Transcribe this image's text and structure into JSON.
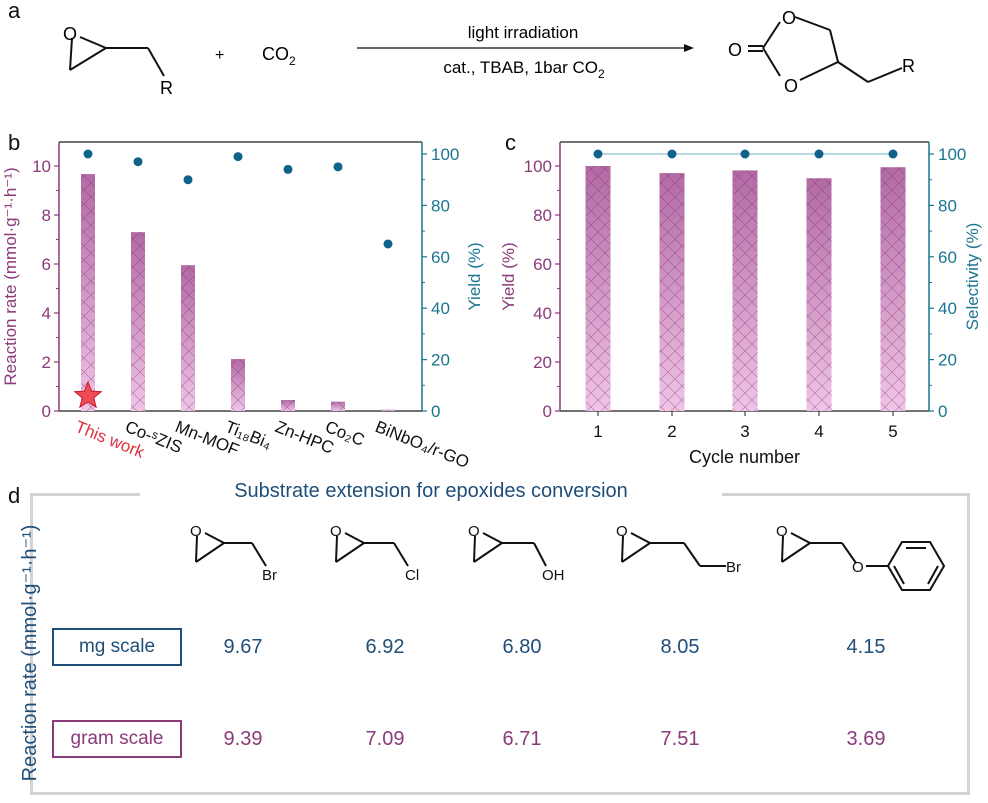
{
  "panel_a": {
    "letter": "a",
    "reactant_substituent": "R",
    "plus": "+",
    "co2": "CO",
    "co2_sub": "2",
    "condition_top": "light irradiation",
    "condition_bottom": "cat., TBAB, 1bar CO",
    "condition_bottom_sub": "2",
    "product_substituent": "R",
    "atom_O": "O"
  },
  "panel_d": {
    "letter": "d",
    "title": "Substrate extension for epoxides conversion",
    "ylabel": "Reaction rate (mmol·g⁻¹·h⁻¹)",
    "substrates": [
      {
        "group": "Br",
        "label": "epibromohydrin"
      },
      {
        "group": "Cl",
        "label": "epichlorohydrin"
      },
      {
        "group": "OH",
        "label": "glycidol"
      },
      {
        "group": "Br",
        "label": "4-bromo-1,2-epoxybutane"
      },
      {
        "group": "O",
        "label": "glycidyl phenyl ether"
      }
    ],
    "rows": [
      {
        "label": "mg scale",
        "color": "#1f4e79",
        "values": [
          "9.67",
          "6.92",
          "6.80",
          "8.05",
          "4.15"
        ]
      },
      {
        "label": "gram scale",
        "color": "#8b3a7a",
        "values": [
          "9.39",
          "7.09",
          "6.71",
          "7.51",
          "3.69"
        ]
      }
    ]
  },
  "colors": {
    "bar_top": "#b26aa4",
    "bar_bottom": "#f0c4e6",
    "left_axis": "#8b3a7a",
    "right_axis": "#1a7590",
    "dots": "#0f6389",
    "star": "#f04a55",
    "this_work": "#e0313f",
    "frame_d": "#d3d3d3"
  },
  "chart_data": [
    {
      "panel": "b",
      "type": "bar",
      "categories": [
        "This work",
        "Co-ˢZIS",
        "Mn-MOF",
        "Ti₁₈Bi₄",
        "Zn-HPC",
        "Co₂C",
        "BiNbO₄/r-GO"
      ],
      "series": [
        {
          "name": "Reaction rate",
          "axis": "left",
          "type": "bar",
          "values": [
            9.67,
            7.3,
            5.95,
            2.12,
            0.45,
            0.38,
            0.05
          ]
        },
        {
          "name": "Yield",
          "axis": "right",
          "type": "scatter",
          "values": [
            100,
            97,
            90,
            99,
            94,
            95,
            65
          ]
        }
      ],
      "ylabel": "Reaction rate (mmol·g⁻¹·h⁻¹)",
      "y2label": "Yield (%)",
      "ylim": [
        0,
        11
      ],
      "y2lim": [
        0,
        105
      ],
      "yticks": [
        0,
        2,
        4,
        6,
        8,
        10
      ],
      "y2ticks": [
        0,
        20,
        40,
        60,
        80,
        100
      ],
      "highlight": "This work"
    },
    {
      "panel": "c",
      "type": "bar",
      "categories": [
        "1",
        "2",
        "3",
        "4",
        "5"
      ],
      "series": [
        {
          "name": "Yield",
          "axis": "left",
          "type": "bar",
          "values": [
            100,
            97.1,
            98.2,
            95,
            99.5
          ]
        },
        {
          "name": "Selectivity",
          "axis": "right",
          "type": "line",
          "values": [
            100,
            100,
            100,
            100,
            100
          ]
        }
      ],
      "xlabel": "Cycle number",
      "ylabel": "Yield (%)",
      "y2label": "Selectivity (%)",
      "ylim": [
        0,
        110
      ],
      "y2lim": [
        0,
        105
      ],
      "yticks": [
        0,
        20,
        40,
        60,
        80,
        100
      ],
      "y2ticks": [
        0,
        20,
        40,
        60,
        80,
        100
      ]
    }
  ],
  "labels": {
    "b": "b",
    "c": "c"
  }
}
